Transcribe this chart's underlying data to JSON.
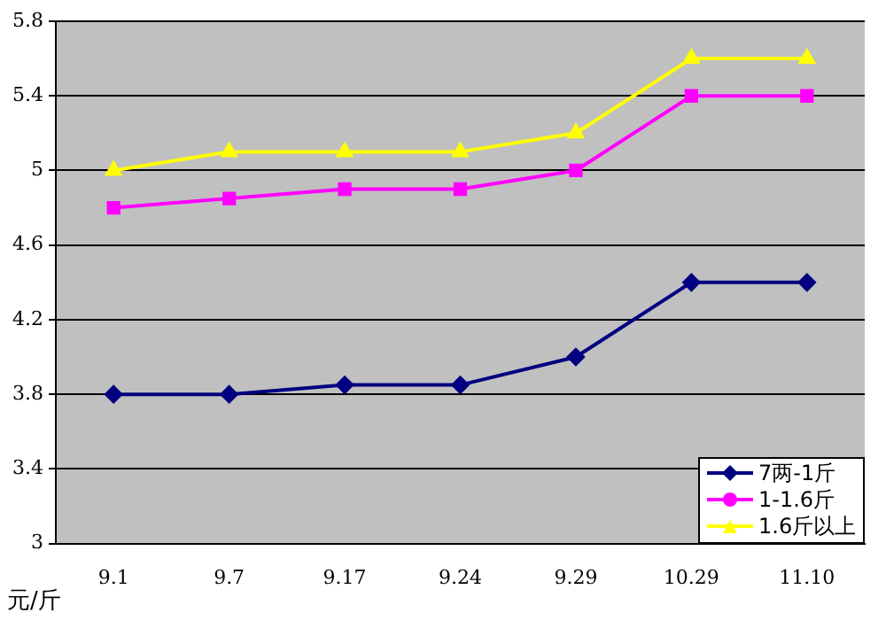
{
  "chart_data": {
    "type": "line",
    "ylabel": "元/斤",
    "categories": [
      "9.1",
      "9.7",
      "9.17",
      "9.24",
      "9.29",
      "10.29",
      "11.10"
    ],
    "ylim": [
      3,
      5.8
    ],
    "yticks": [
      3,
      3.4,
      3.8,
      4.2,
      4.6,
      5,
      5.4,
      5.8
    ],
    "grid": "y",
    "legend": "bottom right",
    "line_style": "solid",
    "series": [
      {
        "name": "7两-1斤",
        "color": "#000080",
        "marker": "diamond",
        "values": [
          3.8,
          3.8,
          3.85,
          3.85,
          4.0,
          4.4,
          4.4
        ]
      },
      {
        "name": "1-1.6斤",
        "color": "#ff00ff",
        "marker": "square",
        "values": [
          4.8,
          4.85,
          4.9,
          4.9,
          5.0,
          5.4,
          5.4
        ]
      },
      {
        "name": "1.6斤以上",
        "color": "#ffff00",
        "marker": "triangle",
        "values": [
          5.0,
          5.1,
          5.1,
          5.1,
          5.2,
          5.6,
          5.6
        ]
      }
    ]
  }
}
